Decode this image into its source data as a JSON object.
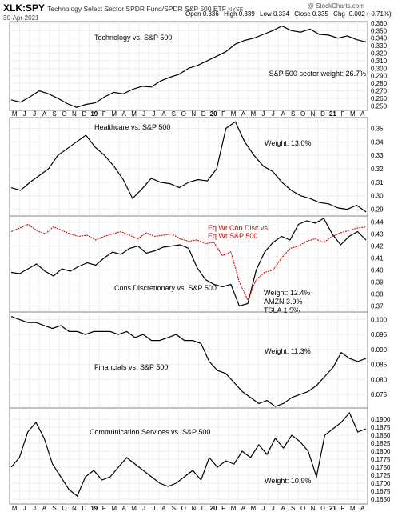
{
  "header": {
    "symbol": "XLK:SPY",
    "description": "Technology Select Sector SPDR Fund/SPDR S&P 500 ETF",
    "exchange": "NYSE",
    "date": "30-Apr-2021",
    "open_label": "Open",
    "open": "0.336",
    "high_label": "High",
    "high": "0.339",
    "low_label": "Low",
    "low": "0.334",
    "close_label": "Close",
    "close": "0.335",
    "chg_label": "Chg",
    "chg": "-0.002 (-0.71%)",
    "brand": "@ StockCharts.com"
  },
  "x_axis": {
    "labels": [
      "M",
      "J",
      "J",
      "A",
      "S",
      "O",
      "N",
      "D",
      "19",
      "F",
      "M",
      "A",
      "M",
      "J",
      "J",
      "A",
      "S",
      "O",
      "N",
      "D",
      "20",
      "F",
      "M",
      "A",
      "M",
      "J",
      "J",
      "A",
      "S",
      "O",
      "N",
      "D",
      "21",
      "F",
      "M",
      "A"
    ]
  },
  "chart_data": [
    {
      "type": "line",
      "panel": "technology",
      "annotations": [
        "Technology vs. S&P 500",
        "S&P 500 sector weight: 26.7%"
      ],
      "ylim": [
        0.244,
        0.362
      ],
      "y_ticks": [
        "0.360",
        "0.350",
        "0.340",
        "0.330",
        "0.320",
        "0.310",
        "0.300",
        "0.290",
        "0.280",
        "0.270",
        "0.260",
        "0.250"
      ],
      "series": [
        {
          "values": [
            0.258,
            0.255,
            0.262,
            0.27,
            0.266,
            0.26,
            0.253,
            0.248,
            0.252,
            0.254,
            0.262,
            0.268,
            0.266,
            0.272,
            0.276,
            0.275,
            0.283,
            0.288,
            0.292,
            0.3,
            0.304,
            0.31,
            0.316,
            0.322,
            0.332,
            0.337,
            0.34,
            0.345,
            0.35,
            0.356,
            0.35,
            0.348,
            0.352,
            0.345,
            0.344,
            0.34,
            0.343,
            0.338,
            0.335
          ]
        }
      ]
    },
    {
      "type": "line",
      "panel": "healthcare",
      "annotations": [
        "Healthcare vs. S&P 500",
        "Weight: 13.0%"
      ],
      "ylim": [
        0.285,
        0.358
      ],
      "y_ticks": [
        "0.35",
        "0.34",
        "0.33",
        "0.32",
        "0.31",
        "0.30",
        "0.29"
      ],
      "series": [
        {
          "values": [
            0.306,
            0.304,
            0.31,
            0.315,
            0.32,
            0.33,
            0.335,
            0.34,
            0.345,
            0.336,
            0.33,
            0.322,
            0.312,
            0.298,
            0.305,
            0.313,
            0.31,
            0.309,
            0.306,
            0.31,
            0.312,
            0.311,
            0.32,
            0.35,
            0.355,
            0.34,
            0.33,
            0.322,
            0.318,
            0.31,
            0.304,
            0.3,
            0.298,
            0.295,
            0.294,
            0.291,
            0.29,
            0.293,
            0.288
          ]
        }
      ]
    },
    {
      "type": "line",
      "panel": "consumer-discretionary",
      "annotations": [
        "Cons Discretionary vs. S&P 500",
        "Weight: 12.4%",
        "AMZN 3.9%",
        "TSLA 1.5%",
        "Eq Wt Con Disc vs.",
        "Eq Wt S&P 500"
      ],
      "ylim": [
        0.365,
        0.445
      ],
      "y_ticks": [
        "0.44",
        "0.43",
        "0.42",
        "0.41",
        "0.40",
        "0.39",
        "0.38",
        "0.37"
      ],
      "series": [
        {
          "values": [
            0.398,
            0.397,
            0.401,
            0.405,
            0.399,
            0.395,
            0.401,
            0.399,
            0.403,
            0.406,
            0.404,
            0.41,
            0.415,
            0.413,
            0.418,
            0.42,
            0.414,
            0.416,
            0.419,
            0.42,
            0.421,
            0.418,
            0.402,
            0.392,
            0.388,
            0.386,
            0.388,
            0.37,
            0.372,
            0.4,
            0.415,
            0.423,
            0.428,
            0.425,
            0.438,
            0.441,
            0.439,
            0.443,
            0.43,
            0.421,
            0.428,
            0.432,
            0.425
          ]
        },
        {
          "values": [
            0.432,
            0.435,
            0.438,
            0.433,
            0.43,
            0.436,
            0.433,
            0.43,
            0.428,
            0.429,
            0.425,
            0.428,
            0.43,
            0.432,
            0.429,
            0.426,
            0.431,
            0.428,
            0.429,
            0.43,
            0.426,
            0.424,
            0.425,
            0.422,
            0.423,
            0.412,
            0.415,
            0.39,
            0.375,
            0.392,
            0.398,
            0.4,
            0.41,
            0.418,
            0.42,
            0.424,
            0.426,
            0.423,
            0.428,
            0.431,
            0.433,
            0.435,
            0.436
          ]
        }
      ]
    },
    {
      "type": "line",
      "panel": "financials",
      "annotations": [
        "Financials vs. S&P 500",
        "Weight: 11.3%"
      ],
      "ylim": [
        0.0705,
        0.1025
      ],
      "y_ticks": [
        "0.100",
        "0.095",
        "0.090",
        "0.085",
        "0.080",
        "0.075"
      ],
      "series": [
        {
          "values": [
            0.101,
            0.1,
            0.099,
            0.099,
            0.098,
            0.097,
            0.098,
            0.096,
            0.096,
            0.095,
            0.096,
            0.096,
            0.096,
            0.095,
            0.096,
            0.094,
            0.095,
            0.093,
            0.093,
            0.094,
            0.095,
            0.093,
            0.093,
            0.092,
            0.086,
            0.083,
            0.082,
            0.079,
            0.076,
            0.074,
            0.072,
            0.073,
            0.071,
            0.072,
            0.074,
            0.075,
            0.076,
            0.078,
            0.081,
            0.084,
            0.089,
            0.087,
            0.086,
            0.087
          ]
        }
      ]
    },
    {
      "type": "line",
      "panel": "communication-services",
      "annotations": [
        "Communication Services vs. S&P 500",
        "Weight: 10.9%"
      ],
      "ylim": [
        0.1635,
        0.1935
      ],
      "y_ticks": [
        "0.1900",
        "0.1875",
        "0.1850",
        "0.1825",
        "0.1800",
        "0.1775",
        "0.1750",
        "0.1725",
        "0.1700",
        "0.1675",
        "0.1650"
      ],
      "series": [
        {
          "values": [
            0.175,
            0.178,
            0.186,
            0.189,
            0.184,
            0.176,
            0.172,
            0.168,
            0.166,
            0.172,
            0.174,
            0.171,
            0.172,
            0.175,
            0.178,
            0.176,
            0.174,
            0.172,
            0.17,
            0.169,
            0.17,
            0.172,
            0.174,
            0.171,
            0.178,
            0.175,
            0.177,
            0.176,
            0.18,
            0.178,
            0.182,
            0.179,
            0.184,
            0.181,
            0.185,
            0.183,
            0.18,
            0.172,
            0.185,
            0.187,
            0.189,
            0.192,
            0.186,
            0.187
          ]
        }
      ]
    }
  ]
}
